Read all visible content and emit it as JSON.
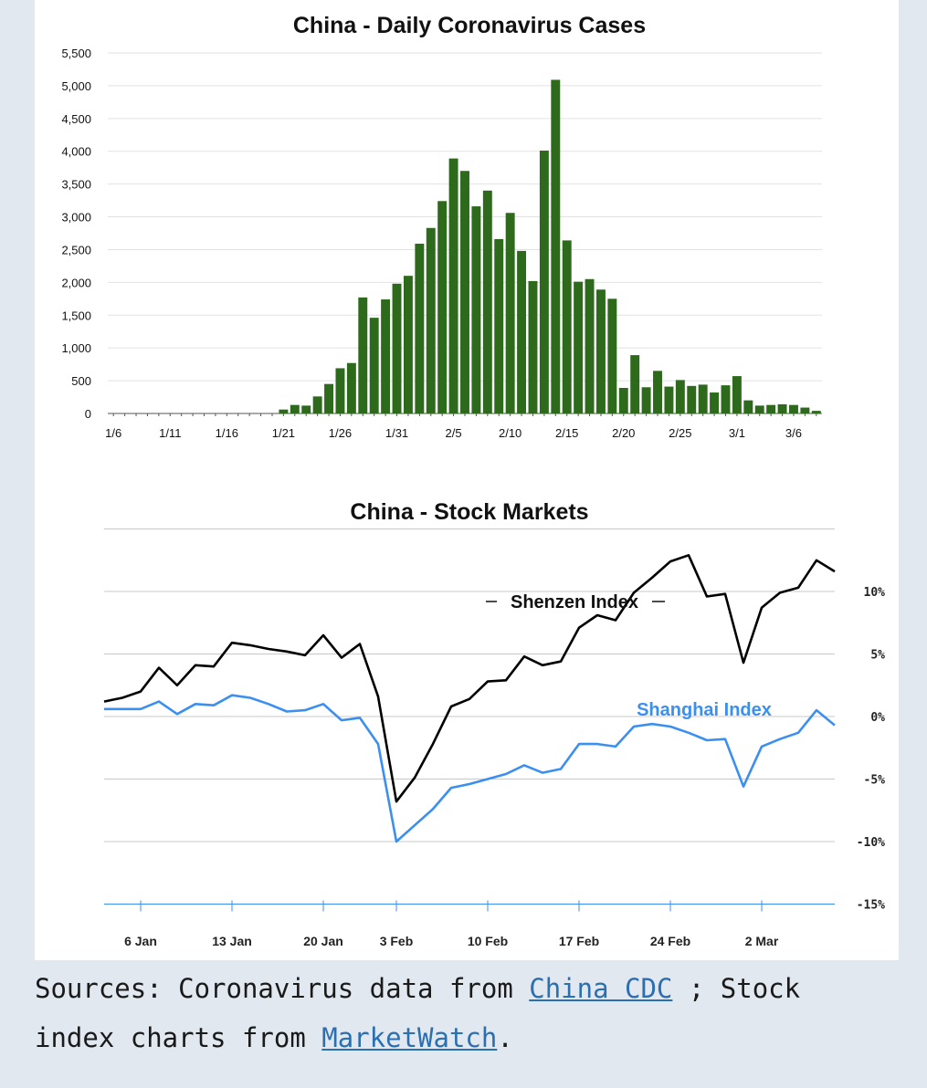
{
  "caption": {
    "prefix": "Sources: Coronavirus data from ",
    "link1": "China CDC",
    "middle": " ; Stock index charts from ",
    "link2": "MarketWatch",
    "suffix": "."
  },
  "colors": {
    "bars": "#2d6a1c",
    "shenzhen": "#000000",
    "shanghai": "#3b8ff0",
    "background": "#e1e8f0"
  },
  "chart_data": [
    {
      "type": "bar",
      "title": "China - Daily Coronavirus Cases",
      "xlabel": "",
      "ylabel": "",
      "ylim": [
        0,
        5500
      ],
      "yticks": [
        "5,500",
        "5,000",
        "4,500",
        "4,000",
        "3,500",
        "3,000",
        "2,500",
        "2,000",
        "1,500",
        "1,000",
        "500",
        "0"
      ],
      "xtick_labels": [
        "1/6",
        "1/11",
        "1/16",
        "1/21",
        "1/26",
        "1/31",
        "2/5",
        "2/10",
        "2/15",
        "2/20",
        "2/25",
        "3/1",
        "3/6"
      ],
      "categories": [
        "1/6",
        "1/7",
        "1/8",
        "1/9",
        "1/10",
        "1/11",
        "1/12",
        "1/13",
        "1/14",
        "1/15",
        "1/16",
        "1/17",
        "1/18",
        "1/19",
        "1/20",
        "1/21",
        "1/22",
        "1/23",
        "1/24",
        "1/25",
        "1/26",
        "1/27",
        "1/28",
        "1/29",
        "1/30",
        "1/31",
        "2/1",
        "2/2",
        "2/3",
        "2/4",
        "2/5",
        "2/6",
        "2/7",
        "2/8",
        "2/9",
        "2/10",
        "2/11",
        "2/12",
        "2/13",
        "2/14",
        "2/15",
        "2/16",
        "2/17",
        "2/18",
        "2/19",
        "2/20",
        "2/21",
        "2/22",
        "2/23",
        "2/24",
        "2/25",
        "2/26",
        "2/27",
        "2/28",
        "2/29",
        "3/1",
        "3/2",
        "3/3",
        "3/4",
        "3/5",
        "3/6",
        "3/7",
        "3/8"
      ],
      "values": [
        0,
        0,
        0,
        0,
        0,
        0,
        0,
        0,
        0,
        0,
        0,
        0,
        0,
        0,
        0,
        60,
        130,
        120,
        260,
        450,
        690,
        770,
        1770,
        1460,
        1740,
        1980,
        2100,
        2590,
        2830,
        3240,
        3890,
        3700,
        3160,
        3400,
        2660,
        3060,
        2480,
        2020,
        4010,
        5090,
        2640,
        2010,
        2050,
        1890,
        1750,
        390,
        890,
        400,
        650,
        410,
        510,
        420,
        440,
        320,
        430,
        570,
        200,
        120,
        130,
        140,
        130,
        90,
        40
      ],
      "grid": true,
      "legend": "none"
    },
    {
      "type": "line",
      "title": "China - Stock Markets",
      "xlabel": "",
      "ylabel": "",
      "ylim": [
        -15,
        15
      ],
      "yticks": [
        "10%",
        "5%",
        "0%",
        "-5%",
        "-10%",
        "-15%"
      ],
      "xtick_labels": [
        "6 Jan",
        "13 Jan",
        "20 Jan",
        "3 Feb",
        "10 Feb",
        "17 Feb",
        "24 Feb",
        "2 Mar"
      ],
      "legend": "inline labels",
      "series": [
        {
          "name": "Shenzen Index",
          "values": [
            1.2,
            1.5,
            2.0,
            3.9,
            2.5,
            4.1,
            4.0,
            5.9,
            5.7,
            5.4,
            5.2,
            4.9,
            6.5,
            4.7,
            5.8,
            1.6,
            -6.8,
            -4.9,
            -2.2,
            0.8,
            1.4,
            2.8,
            2.9,
            4.8,
            4.1,
            4.4,
            7.1,
            8.1,
            7.7,
            9.9,
            11.1,
            12.4,
            12.9,
            9.6,
            9.8,
            4.3,
            8.7,
            9.9,
            10.3,
            12.5,
            11.6
          ]
        },
        {
          "name": "Shanghai Index",
          "values": [
            0.6,
            0.6,
            0.6,
            1.2,
            0.2,
            1.0,
            0.9,
            1.7,
            1.5,
            1.0,
            0.4,
            0.5,
            1.0,
            -0.3,
            -0.1,
            -2.2,
            -10.0,
            -8.7,
            -7.4,
            -5.7,
            -5.4,
            -5.0,
            -4.6,
            -3.9,
            -4.5,
            -4.2,
            -2.2,
            -2.2,
            -2.4,
            -0.8,
            -0.6,
            -0.8,
            -1.3,
            -1.9,
            -1.8,
            -5.6,
            -2.4,
            -1.8,
            -1.3,
            0.5,
            -0.7
          ]
        }
      ]
    }
  ]
}
